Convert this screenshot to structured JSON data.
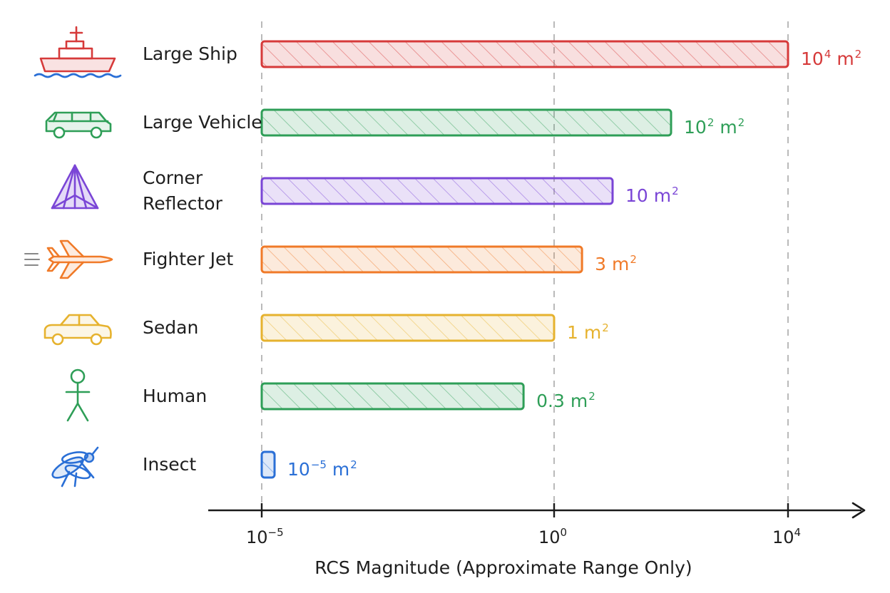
{
  "chart_data": {
    "type": "bar",
    "orientation": "horizontal",
    "x_scale": "log",
    "xlim": [
      1e-05,
      10000
    ],
    "xlabel": "RCS Magnitude (Approximate Range Only)",
    "ylabel": "",
    "title": "",
    "grid": "vertical dashed lines at ticks",
    "xticks": [
      {
        "value": 1e-05,
        "base": "10",
        "exp": "−5"
      },
      {
        "value": 1,
        "base": "10",
        "exp": "0"
      },
      {
        "value": 10000,
        "base": "10",
        "exp": "4"
      }
    ],
    "categories": [
      "Large Ship",
      "Large Vehicle",
      "Corner Reflector",
      "Fighter Jet",
      "Sedan",
      "Human",
      "Insect"
    ],
    "values": [
      10000,
      100,
      10,
      3,
      1,
      0.3,
      1e-05
    ],
    "value_labels": [
      {
        "base": "10",
        "exp": "4",
        "unit": "m",
        "unit_exp": "2"
      },
      {
        "base": "10",
        "exp": "2",
        "unit": "m",
        "unit_exp": "2"
      },
      {
        "base": "10",
        "exp": "",
        "unit": "m",
        "unit_exp": "2"
      },
      {
        "base": "3",
        "exp": "",
        "unit": "m",
        "unit_exp": "2"
      },
      {
        "base": "1",
        "exp": "",
        "unit": "m",
        "unit_exp": "2"
      },
      {
        "base": "0.3",
        "exp": "",
        "unit": "m",
        "unit_exp": "2"
      },
      {
        "base": "10",
        "exp": "−5",
        "unit": "m",
        "unit_exp": "2"
      }
    ],
    "colors": [
      "#d63a3a",
      "#2e9e57",
      "#7a45d6",
      "#f07a28",
      "#e6b22e",
      "#2e9e57",
      "#2a6fd6"
    ],
    "icons": [
      "ship-icon",
      "vehicle-icon",
      "corner-reflector-icon",
      "fighter-jet-icon",
      "sedan-icon",
      "human-icon",
      "insect-icon"
    ]
  }
}
